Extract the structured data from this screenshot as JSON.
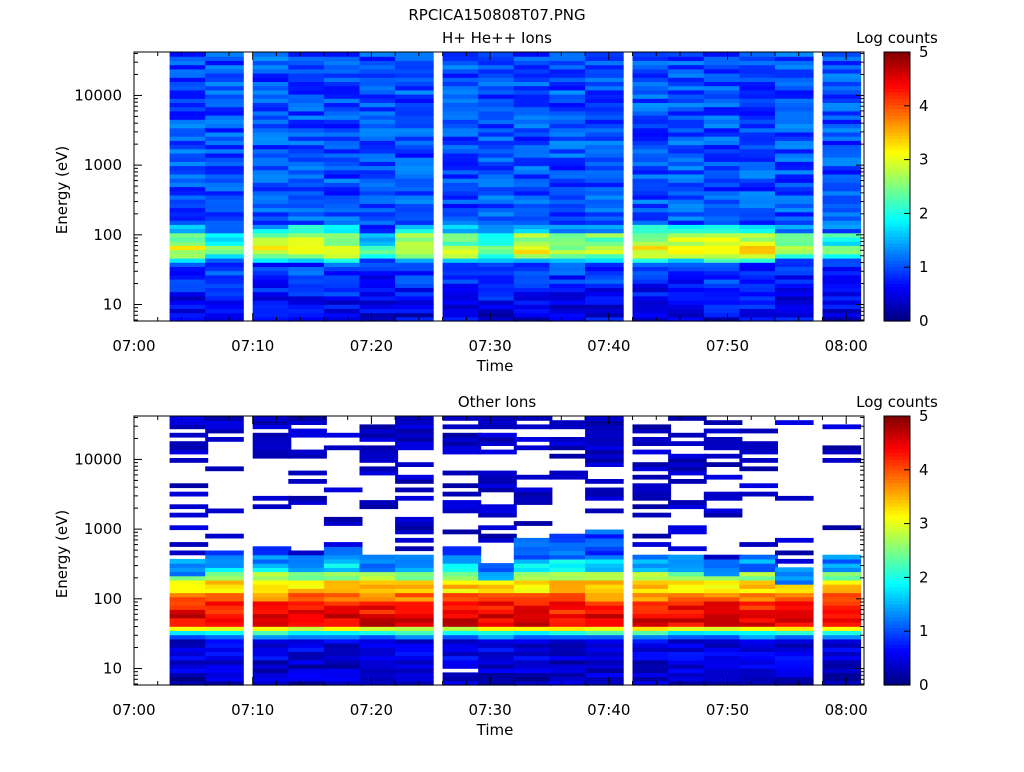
{
  "figure_title": "RPCICA150808T07.PNG",
  "chart_data": [
    {
      "type": "heatmap",
      "title": "H+ He++ Ions",
      "xlabel": "Time",
      "ylabel": "Energy (eV)",
      "colorbar_label": "Log counts",
      "colorbar_ticks": [
        "0",
        "1",
        "2",
        "3",
        "4",
        "5"
      ],
      "clim": [
        0,
        5
      ],
      "colormap": "jet",
      "y_scale": "log",
      "ylim": [
        5.8,
        42000
      ],
      "xlim": [
        "07:00",
        "08:00"
      ],
      "x_ticks": [
        "07:00",
        "07:10",
        "07:20",
        "07:30",
        "07:40",
        "07:50",
        "08:00"
      ],
      "y_ticks": [
        "10",
        "100",
        "1000",
        "10000"
      ],
      "time_bins": [
        "07:03",
        "07:06",
        "07:10",
        "07:13",
        "07:16",
        "07:19",
        "07:22",
        "07:26",
        "07:29",
        "07:32",
        "07:35",
        "07:38",
        "07:42",
        "07:45",
        "07:48",
        "07:51",
        "07:54",
        "07:58"
      ],
      "time_bin_width_min": 3.2,
      "energy_range_eV": [
        5.8,
        42000
      ],
      "energy_profile_log_counts": [
        {
          "max_eV": 8,
          "value": 0.5
        },
        {
          "max_eV": 13,
          "value": 0.6
        },
        {
          "max_eV": 20,
          "value": 0.7
        },
        {
          "max_eV": 28,
          "value": 0.8
        },
        {
          "max_eV": 38,
          "value": 0.9
        },
        {
          "max_eV": 45,
          "value": 1.6
        },
        {
          "max_eV": 52,
          "value": 2.5
        },
        {
          "max_eV": 75,
          "value": 2.9
        },
        {
          "max_eV": 100,
          "value": 2.5
        },
        {
          "max_eV": 140,
          "value": 1.6
        },
        {
          "max_eV": 42000,
          "value": 1.0
        }
      ],
      "time_bin_peak_adjust": [
        0.0,
        -0.6,
        0.05,
        0.25,
        0.2,
        -0.8,
        0.1,
        0.0,
        -0.3,
        0.2,
        -0.2,
        -0.1,
        0.2,
        0.3,
        0.35,
        0.4,
        -0.4,
        -0.5
      ]
    },
    {
      "type": "heatmap",
      "title": "Other Ions",
      "xlabel": "Time",
      "ylabel": "Energy (eV)",
      "colorbar_label": "Log counts",
      "colorbar_ticks": [
        "0",
        "1",
        "2",
        "3",
        "4",
        "5"
      ],
      "clim": [
        0,
        5
      ],
      "colormap": "jet",
      "y_scale": "log",
      "ylim": [
        5.8,
        42000
      ],
      "xlim": [
        "07:00",
        "08:00"
      ],
      "x_ticks": [
        "07:00",
        "07:10",
        "07:20",
        "07:30",
        "07:40",
        "07:50",
        "08:00"
      ],
      "y_ticks": [
        "10",
        "100",
        "1000",
        "10000"
      ],
      "time_bins": [
        "07:03",
        "07:06",
        "07:10",
        "07:13",
        "07:16",
        "07:19",
        "07:22",
        "07:26",
        "07:29",
        "07:32",
        "07:35",
        "07:38",
        "07:42",
        "07:45",
        "07:48",
        "07:51",
        "07:54",
        "07:58"
      ],
      "time_bin_width_min": 3.2,
      "energy_profile_log_counts": [
        {
          "max_eV": 8,
          "value": 0.3
        },
        {
          "max_eV": 13,
          "value": 0.4
        },
        {
          "max_eV": 20,
          "value": 0.5
        },
        {
          "max_eV": 25,
          "value": 0.5
        },
        {
          "max_eV": 30,
          "value": 1.2
        },
        {
          "max_eV": 35,
          "value": 2.0
        },
        {
          "max_eV": 40,
          "value": 3.0
        },
        {
          "max_eV": 60,
          "value": 4.5
        },
        {
          "max_eV": 90,
          "value": 4.3
        },
        {
          "max_eV": 130,
          "value": 3.8
        },
        {
          "max_eV": 180,
          "value": 3.3
        },
        {
          "max_eV": 250,
          "value": 2.6
        },
        {
          "max_eV": 350,
          "value": 1.8
        },
        {
          "max_eV": 450,
          "value": 1.2
        }
      ],
      "max_energy_per_bin_eV": [
        380,
        500,
        550,
        440,
        580,
        460,
        440,
        600,
        330,
        750,
        900,
        930,
        450,
        430,
        380,
        430,
        280,
        450
      ],
      "high_energy_line_count_per_bin": [
        10,
        6,
        10,
        8,
        7,
        8,
        12,
        10,
        14,
        9,
        10,
        13,
        10,
        12,
        8,
        9,
        5,
        6
      ],
      "missing_data_cell": {
        "time": "07:26",
        "energy_eV": [
          8.5,
          10.3
        ]
      }
    }
  ]
}
